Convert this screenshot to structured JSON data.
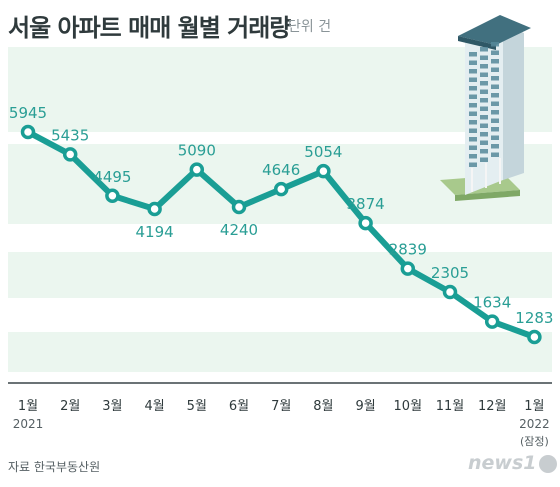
{
  "header": {
    "title": "서울 아파트 매매 월별 거래량",
    "unit": "단위 건"
  },
  "footer": {
    "source": "자료  한국부동산원",
    "watermark": "news1"
  },
  "colors": {
    "line": "#1a9e95",
    "label": "#2a9e95",
    "band": "#ebf6ef",
    "axis": "#3a4548"
  },
  "chart_data": {
    "type": "line",
    "title": "서울 아파트 매매 월별 거래량",
    "unit": "단위 건",
    "categories": [
      "1월",
      "2월",
      "3월",
      "4월",
      "5월",
      "6월",
      "7월",
      "8월",
      "9월",
      "10월",
      "11월",
      "12월",
      "1월"
    ],
    "category_sublabels": [
      "2021",
      "",
      "",
      "",
      "",
      "",
      "",
      "",
      "",
      "",
      "",
      "",
      "2022"
    ],
    "last_note": "(잠정)",
    "series": [
      {
        "name": "",
        "values": [
          5945,
          5435,
          4495,
          4194,
          5090,
          4240,
          4646,
          5054,
          3874,
          2839,
          2305,
          1634,
          1283
        ]
      }
    ],
    "data_labels": [
      "5945",
      "5435",
      "4495",
      "4194",
      "5090",
      "4240",
      "4646",
      "5054",
      "3874",
      "2839",
      "2305",
      "1634",
      "1283"
    ],
    "ylim": [
      0,
      6500
    ],
    "grid": false,
    "legend": "none"
  }
}
